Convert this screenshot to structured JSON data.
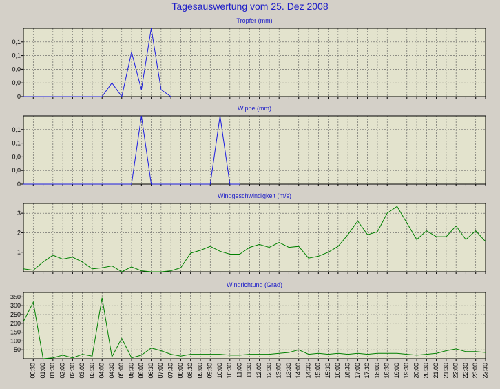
{
  "page": {
    "title": "Tagesauswertung vom 25. Dez 2008"
  },
  "colors": {
    "background": "#d4d0c8",
    "plot_background": "#e3e3cd",
    "grid": "#5a5a5a",
    "axis": "#000000",
    "title_text": "#1c1cc8",
    "blue_series": "#1c1ce0",
    "green_series": "#008000"
  },
  "x_axis": {
    "tick_labels": [
      "00:30",
      "01:00",
      "01:30",
      "02:00",
      "02:30",
      "03:00",
      "03:30",
      "04:00",
      "04:30",
      "05:00",
      "05:30",
      "06:00",
      "06:30",
      "07:00",
      "07:30",
      "08:00",
      "08:30",
      "09:00",
      "09:30",
      "10:00",
      "10:30",
      "11:00",
      "11:30",
      "12:00",
      "12:30",
      "13:00",
      "13:30",
      "14:00",
      "14:30",
      "15:00",
      "15:30",
      "16:00",
      "16:30",
      "17:00",
      "17:30",
      "18:00",
      "18:30",
      "19:00",
      "19:30",
      "20:00",
      "20:30",
      "21:00",
      "21:30",
      "22:00",
      "22:30",
      "23:00",
      "23:30"
    ]
  },
  "chart_data": [
    {
      "type": "line",
      "title": "Tropfer (mm)",
      "color": "#1c1ce0",
      "grid": true,
      "ylim": [
        0,
        0.2
      ],
      "ytick_values": [
        0,
        0.04,
        0.08,
        0.12,
        0.16
      ],
      "ytick_labels": [
        "0",
        "0,0",
        "0,0",
        "0,1",
        "0,1"
      ],
      "x": [
        "00:00",
        "00:30",
        "01:00",
        "01:30",
        "02:00",
        "02:30",
        "03:00",
        "03:30",
        "04:00",
        "04:30",
        "05:00",
        "05:30",
        "06:00",
        "06:30",
        "07:00",
        "07:30"
      ],
      "values": [
        0,
        0,
        0,
        0,
        0,
        0,
        0,
        0,
        0,
        0.04,
        0,
        0.13,
        0.02,
        0.2,
        0.02,
        0
      ]
    },
    {
      "type": "line",
      "title": "Wippe (mm)",
      "color": "#1c1ce0",
      "grid": true,
      "ylim": [
        0,
        0.2
      ],
      "ytick_values": [
        0,
        0.04,
        0.08,
        0.12,
        0.16
      ],
      "ytick_labels": [
        "0",
        "0,0",
        "0,0",
        "0,1",
        "0,1"
      ],
      "x": [
        "00:00",
        "00:30",
        "01:00",
        "01:30",
        "02:00",
        "02:30",
        "03:00",
        "03:30",
        "04:00",
        "04:30",
        "05:00",
        "05:30",
        "06:00",
        "06:30",
        "07:00",
        "07:30",
        "08:00",
        "08:30",
        "09:00",
        "09:30",
        "10:00",
        "10:30",
        "11:00"
      ],
      "values": [
        0,
        0,
        0,
        0,
        0,
        0,
        0,
        0,
        0,
        0,
        0,
        0,
        0.2,
        0,
        0,
        0,
        0,
        0,
        0,
        0,
        0.2,
        0,
        0
      ]
    },
    {
      "type": "line",
      "title": "Windgeschwindigkeit (m/s)",
      "color": "#008000",
      "grid": true,
      "ylim": [
        0,
        3.5
      ],
      "ytick_values": [
        1,
        2,
        3
      ],
      "ytick_labels": [
        "1",
        "2",
        "3"
      ],
      "x": [
        "00:00",
        "00:30",
        "01:00",
        "01:30",
        "02:00",
        "02:30",
        "03:00",
        "03:30",
        "04:00",
        "04:30",
        "05:00",
        "05:30",
        "06:00",
        "06:30",
        "07:00",
        "07:30",
        "08:00",
        "08:30",
        "09:00",
        "09:30",
        "10:00",
        "10:30",
        "11:00",
        "11:30",
        "12:00",
        "12:30",
        "13:00",
        "13:30",
        "14:00",
        "14:30",
        "15:00",
        "15:30",
        "16:00",
        "16:30",
        "17:00",
        "17:30",
        "18:00",
        "18:30",
        "19:00",
        "19:30",
        "20:00",
        "20:30",
        "21:00",
        "21:30",
        "22:00",
        "22:30",
        "23:00",
        "23:30"
      ],
      "values": [
        0.15,
        0.08,
        0.5,
        0.85,
        0.65,
        0.75,
        0.5,
        0.15,
        0.2,
        0.3,
        0,
        0.25,
        0.05,
        0,
        0,
        0.05,
        0.2,
        0.95,
        1.1,
        1.3,
        1.05,
        0.9,
        0.9,
        1.25,
        1.4,
        1.25,
        1.5,
        1.25,
        1.3,
        0.7,
        0.8,
        1,
        1.3,
        1.9,
        2.6,
        1.9,
        2.05,
        3,
        3.35,
        2.5,
        1.65,
        2.1,
        1.8,
        1.8,
        2.35,
        1.65,
        2.1,
        1.55
      ]
    },
    {
      "type": "line",
      "title": "Windrichtung (Grad)",
      "color": "#008000",
      "grid": true,
      "ylim": [
        0,
        375
      ],
      "ytick_values": [
        50,
        100,
        150,
        200,
        250,
        300,
        350
      ],
      "ytick_labels": [
        "50",
        "100",
        "150",
        "200",
        "250",
        "300",
        "350"
      ],
      "x": [
        "00:00",
        "00:30",
        "01:00",
        "01:30",
        "02:00",
        "02:30",
        "03:00",
        "03:30",
        "04:00",
        "04:30",
        "05:00",
        "05:30",
        "06:00",
        "06:30",
        "07:00",
        "07:30",
        "08:00",
        "08:30",
        "09:00",
        "09:30",
        "10:00",
        "10:30",
        "11:00",
        "11:30",
        "12:00",
        "12:30",
        "13:00",
        "13:30",
        "14:00",
        "14:30",
        "15:00",
        "15:30",
        "16:00",
        "16:30",
        "17:00",
        "17:30",
        "18:00",
        "18:30",
        "19:00",
        "19:30",
        "20:00",
        "20:30",
        "21:00",
        "21:30",
        "22:00",
        "22:30",
        "23:00",
        "23:30"
      ],
      "values": [
        210,
        320,
        0,
        5,
        20,
        5,
        25,
        15,
        345,
        10,
        115,
        5,
        20,
        60,
        45,
        25,
        15,
        25,
        25,
        25,
        25,
        20,
        20,
        25,
        25,
        25,
        30,
        35,
        50,
        25,
        30,
        25,
        30,
        25,
        30,
        25,
        30,
        30,
        30,
        25,
        20,
        25,
        30,
        45,
        55,
        40,
        40,
        35
      ]
    }
  ]
}
